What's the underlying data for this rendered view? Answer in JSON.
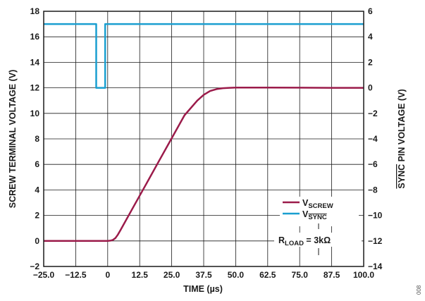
{
  "chart_data": {
    "type": "line",
    "title": "",
    "xlabel": "TIME (µs)",
    "ylabel_left": "SCREW TERMINAL VOLTAGE (V)",
    "ylabel_right_overline": "SYNC",
    "ylabel_right_rest": " PIN VOLTAGE (V)",
    "xlim": [
      -25.0,
      100.0
    ],
    "ylim_left": [
      -2,
      18
    ],
    "ylim_right": [
      -14,
      6
    ],
    "x_ticks": [
      "−25.0",
      "−12.5",
      "0",
      "12.5",
      "25.0",
      "37.5",
      "50.0",
      "62.5",
      "75.0",
      "87.5",
      "100.0"
    ],
    "y_left_ticks": [
      "−2",
      "0",
      "2",
      "4",
      "6",
      "8",
      "10",
      "12",
      "14",
      "16",
      "18"
    ],
    "y_right_ticks": [
      "−14",
      "−12",
      "−10",
      "−8",
      "−6",
      "−4",
      "−2",
      "0",
      "2",
      "4",
      "6"
    ],
    "grid": true,
    "legend_position": "bottom-right",
    "series": [
      {
        "name_main": "V",
        "name_sub": "SCREW",
        "axis": "left",
        "color": "#9b1b4a",
        "x": [
          -25,
          0,
          1,
          2,
          3,
          4,
          5,
          10,
          15,
          20,
          25,
          30,
          35,
          37.5,
          40,
          42.5,
          45,
          47.5,
          50,
          55,
          62.5,
          75,
          87.5,
          100
        ],
        "y": [
          0,
          0,
          0.02,
          0.08,
          0.22,
          0.5,
          0.85,
          2.65,
          4.45,
          6.25,
          8.05,
          9.85,
          11.0,
          11.45,
          11.75,
          11.9,
          11.97,
          12.0,
          12.02,
          12.02,
          12.02,
          12.01,
          12.0,
          12.0
        ]
      },
      {
        "name_main": "V",
        "name_sub": "SYNC",
        "axis": "right",
        "color": "#1a9fd0",
        "x": [
          -25,
          -4.5,
          -4.5,
          -1.0,
          -1.0,
          100
        ],
        "y": [
          5,
          5,
          0,
          0,
          5,
          5
        ]
      }
    ],
    "annotation": {
      "main": "R",
      "sub": "LOAD",
      "rest": " = 3kΩ"
    }
  },
  "figure_id": "008"
}
